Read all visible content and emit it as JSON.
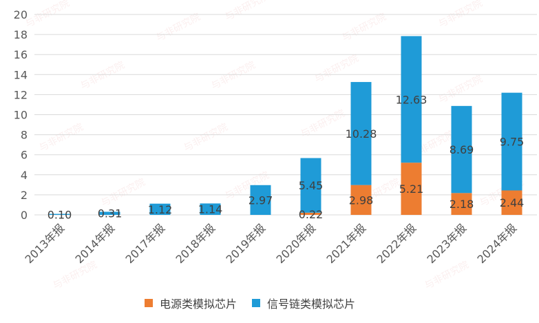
{
  "chart_data": {
    "type": "bar",
    "stacked": true,
    "categories": [
      "2013年报",
      "2014年报",
      "2017年报",
      "2018年报",
      "2019年报",
      "2020年报",
      "2021年报",
      "2022年报",
      "2023年报",
      "2024年报"
    ],
    "series": [
      {
        "name": "电源类模拟芯片",
        "color": "#ED7D31",
        "values": [
          null,
          null,
          null,
          null,
          null,
          0.22,
          2.98,
          5.21,
          2.18,
          2.44
        ]
      },
      {
        "name": "信号链类模拟芯片",
        "color": "#1F9BD7",
        "values": [
          0.1,
          0.31,
          1.12,
          1.14,
          2.97,
          5.45,
          10.28,
          12.63,
          8.69,
          9.75
        ]
      }
    ],
    "data_labels": {
      "电源类模拟芯片": [
        "",
        "",
        "",
        "",
        "",
        "0.22",
        "2.98",
        "5.21",
        "2.18",
        "2.44"
      ],
      "信号链类模拟芯片": [
        "0.10",
        "0.31",
        "1.12",
        "1.14",
        "2.97",
        "5.45",
        "10.28",
        "12.63",
        "8.69",
        "9.75"
      ]
    },
    "ylim": [
      0,
      20
    ],
    "yticks": [
      "0",
      "2",
      "4",
      "6",
      "8",
      "10",
      "12",
      "14",
      "16",
      "18",
      "20"
    ],
    "xlabel": "",
    "ylabel": "",
    "title": "",
    "grid": true,
    "legend_position": "bottom"
  },
  "watermark_text": "与非研究院"
}
